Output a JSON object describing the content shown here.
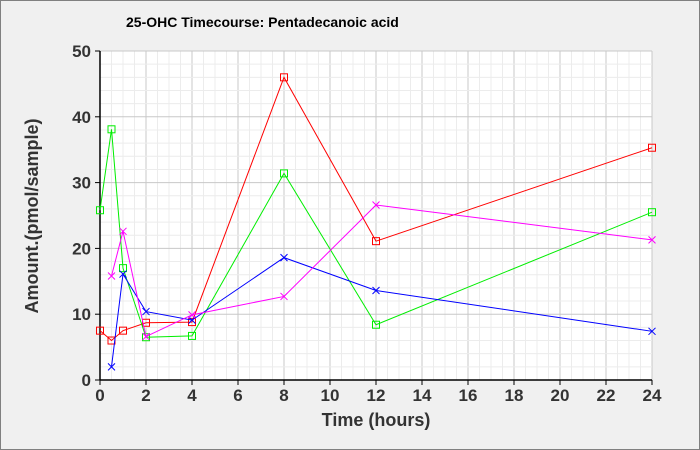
{
  "chart_data": {
    "type": "line",
    "title": "25-OHC Timecourse: Pentadecanoic acid",
    "xlabel": "Time (hours)",
    "ylabel": "Amount.(pmol/sample)",
    "xlim": [
      0,
      24
    ],
    "ylim": [
      0,
      50
    ],
    "xticks": [
      0,
      2,
      4,
      6,
      8,
      10,
      12,
      14,
      16,
      18,
      20,
      22,
      24
    ],
    "yticks": [
      0,
      10,
      20,
      30,
      40,
      50
    ],
    "grid": true,
    "series": [
      {
        "color": "#ff0000",
        "marker": "square",
        "x": [
          0,
          0.5,
          1,
          2,
          4,
          8,
          12,
          24
        ],
        "y": [
          7.5,
          6.0,
          7.5,
          8.7,
          8.8,
          46.0,
          21.1,
          35.3
        ]
      },
      {
        "color": "#00ee00",
        "marker": "square",
        "x": [
          0,
          0.5,
          1,
          2,
          4,
          8,
          12,
          24
        ],
        "y": [
          25.8,
          38.1,
          17.0,
          6.5,
          6.7,
          31.4,
          8.4,
          25.5
        ]
      },
      {
        "color": "#0000ff",
        "marker": "x",
        "x": [
          0.5,
          1,
          2,
          4,
          8,
          12,
          24
        ],
        "y": [
          2.0,
          16.1,
          10.4,
          9.1,
          18.6,
          13.6,
          7.4
        ]
      },
      {
        "color": "#ff00ff",
        "marker": "x",
        "x": [
          0.5,
          1,
          2,
          4,
          8,
          12,
          24
        ],
        "y": [
          15.8,
          22.6,
          6.6,
          9.9,
          12.7,
          26.6,
          21.3
        ]
      }
    ]
  }
}
